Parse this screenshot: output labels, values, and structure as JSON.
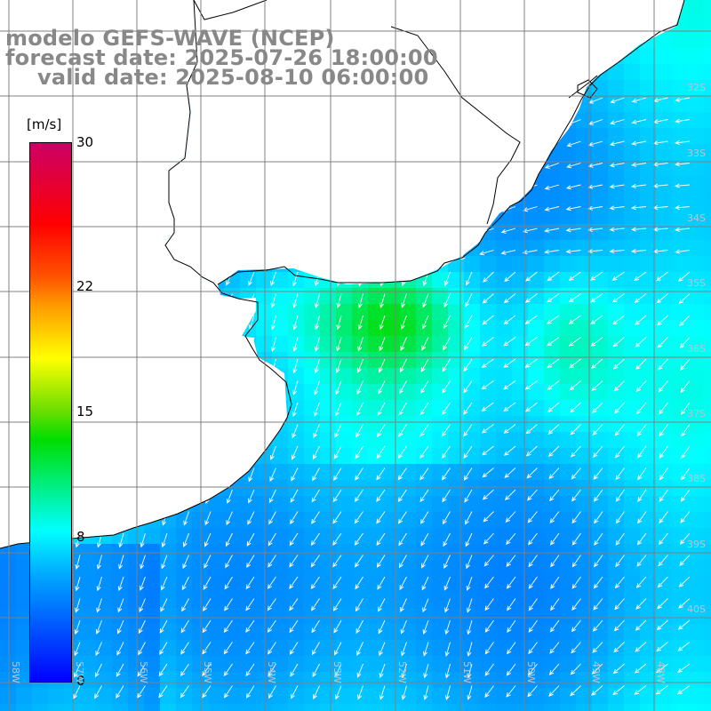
{
  "header": {
    "line1": "modelo GEFS-WAVE (NCEP)",
    "line2": "forecast date: 2025-07-26 18:00:00",
    "line3": "valid date: 2025-08-10 06:00:00"
  },
  "colorbar": {
    "unit": "[m/s]",
    "ticks": [
      {
        "label": "30",
        "value": 30
      },
      {
        "label": "22",
        "value": 22
      },
      {
        "label": "15",
        "value": 15
      },
      {
        "label": "8",
        "value": 8
      },
      {
        "label": "0",
        "value": 0
      }
    ],
    "colors": [
      "#0000ff",
      "#00aaff",
      "#00ffff",
      "#00dd00",
      "#ffff00",
      "#ff9900",
      "#ff0000",
      "#cc0066"
    ]
  },
  "map": {
    "lat_labels": [
      "32S",
      "33S",
      "34S",
      "35S",
      "36S",
      "37S",
      "38S",
      "39S",
      "40S"
    ],
    "lon_labels": [
      "58W",
      "57W",
      "56W",
      "55W",
      "54W",
      "53W",
      "52W",
      "51W",
      "50W",
      "49W",
      "48W"
    ],
    "land_color": "#ffffff",
    "grid_color": "#808080",
    "arrow_color": "#ffffff"
  }
}
